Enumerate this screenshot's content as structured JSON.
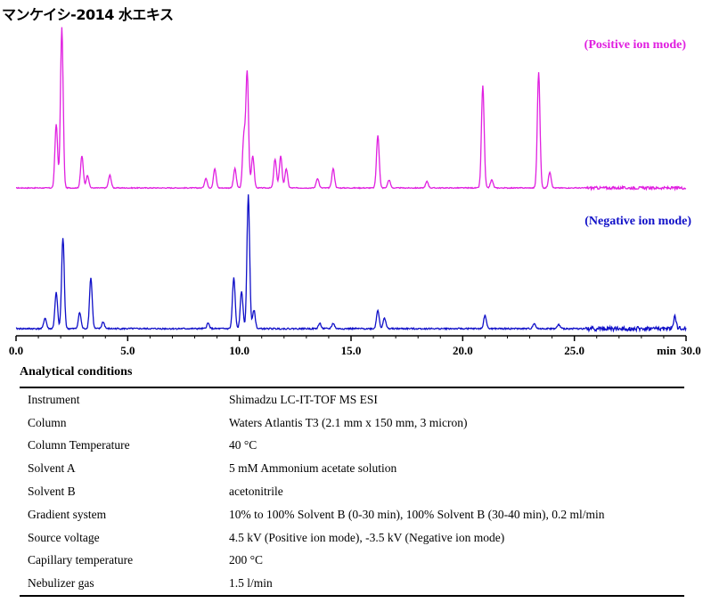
{
  "title": "マンケイシ-2014 水エキス",
  "chart_data": {
    "type": "line",
    "x_unit": "min",
    "xlim": [
      0,
      30
    ],
    "x_ticks": [
      "0.0",
      "5.0",
      "10.0",
      "15.0",
      "20.0",
      "25.0",
      "30.0"
    ],
    "x_tick_values": [
      0,
      5,
      10,
      15,
      20,
      25,
      30
    ],
    "series": [
      {
        "name": "(Positive ion mode)",
        "color": "#e020e0",
        "relative_intensity_peaks": [
          [
            1.8,
            0.4
          ],
          [
            2.05,
            1.0
          ],
          [
            2.95,
            0.2
          ],
          [
            3.2,
            0.08
          ],
          [
            4.2,
            0.08
          ],
          [
            8.5,
            0.06
          ],
          [
            8.9,
            0.12
          ],
          [
            9.8,
            0.12
          ],
          [
            10.2,
            0.32
          ],
          [
            10.35,
            0.72
          ],
          [
            10.6,
            0.2
          ],
          [
            11.6,
            0.18
          ],
          [
            11.85,
            0.2
          ],
          [
            12.1,
            0.12
          ],
          [
            13.5,
            0.06
          ],
          [
            14.2,
            0.12
          ],
          [
            16.2,
            0.33
          ],
          [
            16.7,
            0.05
          ],
          [
            18.4,
            0.04
          ],
          [
            20.9,
            0.64
          ],
          [
            21.3,
            0.05
          ],
          [
            23.4,
            0.72
          ],
          [
            23.9,
            0.1
          ]
        ]
      },
      {
        "name": "(Negative ion mode)",
        "color": "#1010c8",
        "relative_intensity_peaks": [
          [
            1.3,
            0.08
          ],
          [
            1.8,
            0.27
          ],
          [
            2.1,
            0.68
          ],
          [
            2.85,
            0.12
          ],
          [
            3.35,
            0.38
          ],
          [
            3.9,
            0.05
          ],
          [
            8.6,
            0.04
          ],
          [
            9.75,
            0.38
          ],
          [
            10.1,
            0.28
          ],
          [
            10.4,
            1.0
          ],
          [
            10.65,
            0.14
          ],
          [
            13.6,
            0.04
          ],
          [
            14.2,
            0.04
          ],
          [
            16.2,
            0.14
          ],
          [
            16.5,
            0.08
          ],
          [
            21.0,
            0.1
          ],
          [
            23.2,
            0.04
          ],
          [
            24.3,
            0.03
          ],
          [
            29.5,
            0.09
          ]
        ]
      }
    ]
  },
  "conditions": {
    "heading": "Analytical conditions",
    "rows": [
      {
        "key": "Instrument",
        "value": "Shimadzu LC-IT-TOF MS ESI"
      },
      {
        "key": "Column",
        "value": "Waters Atlantis T3 (2.1 mm x 150 mm, 3 micron)"
      },
      {
        "key": "Column Temperature",
        "value": "40 °C"
      },
      {
        "key": "Solvent A",
        "value": "5 mM Ammonium acetate solution"
      },
      {
        "key": "Solvent B",
        "value": "acetonitrile"
      },
      {
        "key": "Gradient system",
        "value": "10% to 100% Solvent B (0-30 min), 100% Solvent B (30-40 min), 0.2 ml/min"
      },
      {
        "key": "Source voltage",
        "value": "4.5 kV (Positive ion mode), -3.5 kV (Negative ion mode)"
      },
      {
        "key": "Capillary temperature",
        "value": "200 °C"
      },
      {
        "key": "Nebulizer gas",
        "value": "1.5 l/min"
      }
    ]
  }
}
